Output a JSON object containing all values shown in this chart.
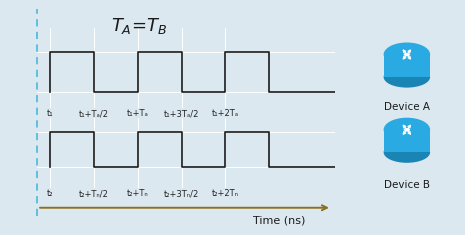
{
  "bg_color": "#dce8f0",
  "grid_color": "#ffffff",
  "signal_color": "#1a1a1a",
  "dashed_line_color": "#55bbdd",
  "axis_color": "#8b7020",
  "time_label": "Time (ns)",
  "device_a_label": "Device A",
  "device_b_label": "Device B",
  "router_color_top": "#2fa0d8",
  "router_color_side": "#1a7aaa",
  "signal_a_x": [
    0,
    0,
    1,
    1,
    2,
    2,
    3,
    3,
    4,
    4,
    5,
    5,
    6.5
  ],
  "signal_a_y": [
    0,
    1,
    1,
    0,
    0,
    1,
    1,
    0,
    0,
    1,
    1,
    0,
    0
  ],
  "signal_b_x": [
    0,
    0,
    1,
    1,
    2,
    2,
    3,
    3,
    4,
    4,
    5,
    5,
    6.5
  ],
  "signal_b_y": [
    0,
    1,
    1,
    0,
    0,
    1,
    1,
    0,
    0,
    1,
    1,
    0,
    0
  ],
  "tick_labels_a": [
    "t₁",
    "t₁+Tₐ/2",
    "t₁+Tₐ",
    "t₁+3Tₐ/2",
    "t₁+2Tₐ"
  ],
  "tick_labels_b": [
    "t₂",
    "t₂+Tₙ/2",
    "t₂+Tₙ",
    "t₂+3Tₙ/2",
    "t₂+2Tₙ"
  ],
  "tick_positions": [
    0,
    1,
    2,
    3,
    4
  ],
  "xlim": [
    -0.3,
    6.5
  ],
  "ylim_a": [
    -0.4,
    1.6
  ],
  "ylim_b": [
    -0.6,
    1.4
  ],
  "title_text": "T",
  "title_sub_a": "A",
  "title_sub_b": "B"
}
